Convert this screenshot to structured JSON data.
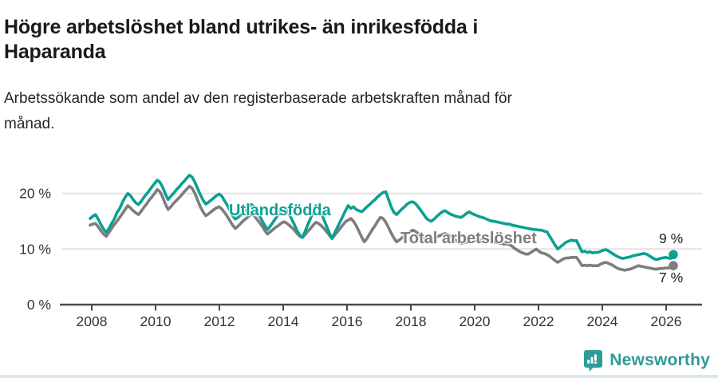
{
  "header": {
    "title_lines": [
      "Högre arbetslöshet bland utrikes- än inrikesfödda i",
      "Haparanda"
    ],
    "subtitle_lines": [
      "Arbetssökande som andel av den registerbaserade arbetskraften månad för",
      "månad."
    ]
  },
  "chart_data": {
    "type": "line",
    "title": "Högre arbetslöshet bland utrikes- än inrikesfödda i Haparanda",
    "subtitle": "Arbetssökande som andel av den registerbaserade arbetskraften månad för månad.",
    "unit": "%",
    "frequency": "monthly",
    "x_start": "2008-01",
    "x_end": "2026-02",
    "x_tick_years": [
      2008,
      2010,
      2012,
      2014,
      2016,
      2018,
      2020,
      2022,
      2024,
      2026
    ],
    "y_ticks": [
      {
        "value": 0,
        "label": "0 %"
      },
      {
        "value": 10,
        "label": "10 %"
      },
      {
        "value": 20,
        "label": "20 %"
      }
    ],
    "ylim": [
      0,
      25
    ],
    "grid": true,
    "legend_position": "inline-labels",
    "axis_color": "#4b4b4b",
    "grid_color": "#e3e3e3",
    "tick_label_color": "#333333",
    "series": [
      {
        "name": "Utlandsfödda",
        "color": "#0ca092",
        "end_label": "9 %",
        "end_value": 9,
        "values": [
          15.5,
          15.9,
          16.2,
          15.4,
          14.4,
          13.6,
          13.0,
          13.7,
          14.6,
          15.4,
          16.6,
          17.3,
          18.4,
          19.3,
          20.0,
          19.6,
          18.9,
          18.3,
          18.0,
          18.6,
          19.3,
          19.9,
          20.5,
          21.2,
          21.8,
          22.4,
          22.0,
          21.1,
          19.9,
          18.9,
          19.5,
          20.0,
          20.6,
          21.1,
          21.7,
          22.2,
          22.8,
          23.3,
          22.9,
          22.0,
          20.9,
          19.8,
          18.8,
          18.1,
          18.4,
          18.8,
          19.2,
          19.6,
          19.9,
          19.5,
          18.7,
          17.9,
          16.9,
          16.0,
          15.4,
          15.7,
          16.1,
          16.6,
          17.1,
          17.6,
          18.0,
          17.6,
          16.8,
          16.0,
          15.1,
          14.2,
          13.5,
          14.1,
          14.8,
          15.5,
          16.2,
          16.9,
          17.5,
          17.1,
          16.3,
          15.4,
          14.4,
          13.3,
          12.5,
          12.1,
          13.2,
          14.4,
          15.5,
          16.7,
          17.8,
          17.4,
          16.5,
          15.3,
          14.1,
          12.9,
          11.9,
          12.9,
          13.9,
          14.9,
          15.9,
          16.9,
          17.8,
          17.3,
          17.6,
          17.1,
          16.9,
          16.7,
          17.1,
          17.6,
          18.0,
          18.5,
          18.9,
          19.4,
          19.8,
          20.2,
          20.3,
          19.0,
          17.6,
          16.6,
          16.2,
          16.7,
          17.2,
          17.6,
          18.1,
          18.4,
          18.5,
          18.2,
          17.6,
          17.0,
          16.3,
          15.6,
          15.2,
          15.0,
          15.4,
          15.9,
          16.3,
          16.7,
          16.9,
          16.6,
          16.3,
          16.1,
          15.9,
          15.8,
          15.7,
          16.0,
          16.4,
          16.7,
          16.4,
          16.2,
          16.0,
          15.8,
          15.7,
          15.5,
          15.3,
          15.1,
          15.0,
          14.9,
          14.8,
          14.7,
          14.6,
          14.5,
          14.5,
          14.3,
          14.2,
          14.1,
          14.0,
          13.9,
          13.8,
          13.7,
          13.6,
          13.5,
          13.5,
          13.4,
          13.4,
          13.2,
          13.1,
          12.3,
          11.5,
          10.7,
          10.0,
          10.4,
          10.8,
          11.2,
          11.4,
          11.6,
          11.5,
          11.5,
          10.5,
          9.5,
          9.6,
          9.4,
          9.5,
          9.3,
          9.4,
          9.4,
          9.6,
          9.8,
          9.9,
          9.6,
          9.3,
          9.0,
          8.7,
          8.5,
          8.3,
          8.4,
          8.5,
          8.6,
          8.8,
          8.9,
          9.0,
          9.1,
          9.2,
          9.1,
          8.8,
          8.5,
          8.2,
          8.1,
          8.3,
          8.4,
          8.5,
          8.4,
          8.3,
          9.0
        ]
      },
      {
        "name": "Total arbetslöshet",
        "color": "#7d7d7d",
        "end_label": "7 %",
        "end_value": 7,
        "values": [
          14.3,
          14.5,
          14.6,
          14.0,
          13.3,
          12.7,
          12.3,
          13.0,
          13.7,
          14.4,
          15.0,
          15.7,
          16.4,
          17.1,
          17.8,
          17.4,
          16.9,
          16.5,
          16.2,
          16.8,
          17.5,
          18.1,
          18.8,
          19.4,
          20.0,
          20.7,
          20.3,
          19.3,
          18.1,
          17.1,
          17.6,
          18.2,
          18.7,
          19.2,
          19.7,
          20.3,
          20.8,
          21.3,
          20.9,
          20.0,
          18.8,
          17.6,
          16.7,
          16.0,
          16.3,
          16.7,
          17.1,
          17.4,
          17.6,
          17.2,
          16.6,
          15.9,
          15.1,
          14.3,
          13.7,
          14.1,
          14.6,
          15.1,
          15.5,
          15.9,
          16.3,
          16.0,
          15.4,
          14.8,
          14.1,
          13.3,
          12.7,
          13.1,
          13.5,
          13.9,
          14.2,
          14.6,
          14.9,
          14.7,
          14.3,
          13.9,
          13.4,
          12.8,
          12.3,
          12.1,
          12.6,
          13.2,
          13.7,
          14.3,
          14.8,
          14.6,
          14.2,
          13.7,
          13.1,
          12.5,
          11.9,
          12.5,
          13.1,
          13.7,
          14.3,
          14.9,
          15.2,
          15.5,
          15.0,
          14.2,
          13.2,
          12.2,
          11.3,
          11.9,
          12.7,
          13.5,
          14.2,
          15.0,
          15.7,
          15.5,
          14.8,
          13.9,
          12.9,
          12.0,
          11.3,
          11.6,
          12.0,
          12.4,
          12.8,
          13.1,
          13.4,
          13.2,
          12.8,
          12.4,
          12.0,
          11.7,
          11.4,
          11.6,
          11.9,
          12.2,
          12.4,
          12.6,
          12.8,
          12.6,
          12.3,
          12.0,
          11.6,
          11.3,
          11.0,
          11.1,
          11.2,
          11.3,
          11.4,
          11.5,
          11.5,
          11.5,
          11.6,
          11.7,
          11.6,
          11.4,
          11.3,
          11.2,
          11.1,
          11.0,
          10.9,
          10.9,
          10.8,
          10.5,
          10.1,
          9.8,
          9.5,
          9.3,
          9.1,
          9.1,
          9.4,
          9.7,
          10.0,
          9.6,
          9.3,
          9.2,
          9.0,
          8.7,
          8.3,
          7.9,
          7.6,
          7.9,
          8.2,
          8.4,
          8.4,
          8.5,
          8.5,
          8.5,
          7.8,
          7.0,
          7.1,
          7.0,
          7.1,
          7.0,
          7.0,
          7.0,
          7.3,
          7.5,
          7.6,
          7.4,
          7.2,
          6.9,
          6.6,
          6.4,
          6.3,
          6.2,
          6.3,
          6.4,
          6.6,
          6.8,
          7.0,
          6.9,
          6.8,
          6.7,
          6.6,
          6.5,
          6.4,
          6.4,
          6.5,
          6.5,
          6.6,
          6.6,
          6.7,
          7.0
        ]
      }
    ]
  },
  "brand": {
    "name": "Newsworthy",
    "color": "#2f9a96",
    "icon": "speech-bubble-bar-chart-icon",
    "icon_color": "#2d9d99"
  }
}
